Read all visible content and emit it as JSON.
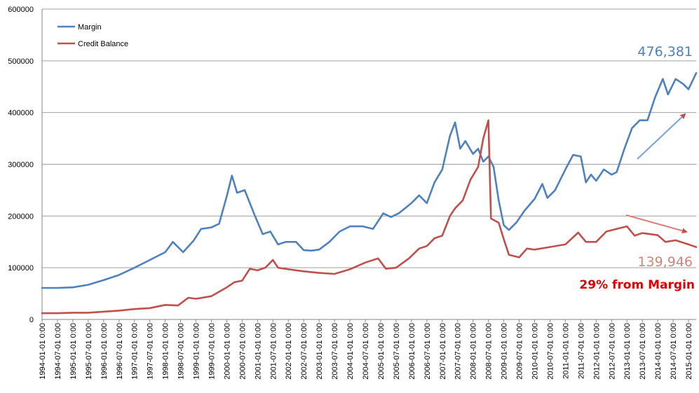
{
  "chart_data": {
    "type": "line",
    "title": "",
    "xlabel": "",
    "ylabel": "",
    "x_start": "1994-01",
    "x_end": "2015-04",
    "ylim": [
      0,
      600000
    ],
    "yticks": [
      0,
      100000,
      200000,
      300000,
      400000,
      500000,
      600000
    ],
    "ytick_labels": [
      "0",
      "100000",
      "200000",
      "300000",
      "400000",
      "500000",
      "600000"
    ],
    "xtick_labels": [
      "1994-01-01 0:00",
      "1994-07-01 0:00",
      "1995-01-01 0:00",
      "1995-07-01 0:00",
      "1996-01-01 0:00",
      "1996-07-01 0:00",
      "1997-01-01 0:00",
      "1997-07-01 0:00",
      "1998-01-01 0:00",
      "1998-07-01 0:00",
      "1999-01-01 0:00",
      "1999-07-01 0:00",
      "2000-01-01 0:00",
      "2000-07-01 0:00",
      "2001-01-01 0:00",
      "2001-07-01 0:00",
      "2002-01-01 0:00",
      "2002-07-01 0:00",
      "2003-01-01 0:00",
      "2003-07-01 0:00",
      "2004-01-01 0:00",
      "2004-07-01 0:00",
      "2005-01-01 0:00",
      "2005-07-01 0:00",
      "2006-01-01 0:00",
      "2006-07-01 0:00",
      "2007-01-01 0:00",
      "2007-07-01 0:00",
      "2008-01-01 0:00",
      "2008-07-01 0:00",
      "2009-01-01 0:00",
      "2009-07-01 0:00",
      "2010-01-01 0:00",
      "2010-07-01 0:00",
      "2011-01-01 0:00",
      "2011-07-01 0:00",
      "2012-01-01 0:00",
      "2012-07-01 0:00",
      "2013-01-01 0:00",
      "2013-07-01 0:00",
      "2014-01-01 0:00",
      "2014-07-01 0:00",
      "2015-01-01 0:00"
    ],
    "grid": "horizontal",
    "legend_position": "top-left",
    "series": [
      {
        "name": "Margin",
        "color": "#4F81BD",
        "points": [
          [
            "1994-01",
            61000
          ],
          [
            "1994-07",
            61000
          ],
          [
            "1995-01",
            62000
          ],
          [
            "1995-07",
            67000
          ],
          [
            "1996-01",
            76000
          ],
          [
            "1996-07",
            86000
          ],
          [
            "1997-01",
            100000
          ],
          [
            "1997-07",
            115000
          ],
          [
            "1998-01",
            130000
          ],
          [
            "1998-04",
            150000
          ],
          [
            "1998-08",
            130000
          ],
          [
            "1998-12",
            152000
          ],
          [
            "1999-03",
            175000
          ],
          [
            "1999-07",
            178000
          ],
          [
            "1999-10",
            185000
          ],
          [
            "2000-01",
            238000
          ],
          [
            "2000-03",
            278000
          ],
          [
            "2000-05",
            245000
          ],
          [
            "2000-08",
            250000
          ],
          [
            "2000-12",
            200000
          ],
          [
            "2001-03",
            165000
          ],
          [
            "2001-06",
            170000
          ],
          [
            "2001-09",
            145000
          ],
          [
            "2001-12",
            150000
          ],
          [
            "2002-04",
            150000
          ],
          [
            "2002-07",
            134000
          ],
          [
            "2002-10",
            133000
          ],
          [
            "2003-01",
            135000
          ],
          [
            "2003-05",
            150000
          ],
          [
            "2003-09",
            170000
          ],
          [
            "2004-01",
            180000
          ],
          [
            "2004-06",
            180000
          ],
          [
            "2004-10",
            175000
          ],
          [
            "2005-02",
            205000
          ],
          [
            "2005-05",
            198000
          ],
          [
            "2005-08",
            205000
          ],
          [
            "2006-01",
            225000
          ],
          [
            "2006-04",
            240000
          ],
          [
            "2006-07",
            225000
          ],
          [
            "2006-10",
            265000
          ],
          [
            "2007-01",
            290000
          ],
          [
            "2007-04",
            355000
          ],
          [
            "2007-06",
            381000
          ],
          [
            "2007-08",
            330000
          ],
          [
            "2007-10",
            345000
          ],
          [
            "2008-01",
            320000
          ],
          [
            "2008-03",
            330000
          ],
          [
            "2008-05",
            305000
          ],
          [
            "2008-07",
            315000
          ],
          [
            "2008-09",
            295000
          ],
          [
            "2008-11",
            230000
          ],
          [
            "2009-01",
            182000
          ],
          [
            "2009-03",
            173000
          ],
          [
            "2009-06",
            188000
          ],
          [
            "2009-09",
            210000
          ],
          [
            "2010-01",
            233000
          ],
          [
            "2010-04",
            262000
          ],
          [
            "2010-06",
            235000
          ],
          [
            "2010-09",
            250000
          ],
          [
            "2011-01",
            290000
          ],
          [
            "2011-04",
            318000
          ],
          [
            "2011-07",
            315000
          ],
          [
            "2011-09",
            265000
          ],
          [
            "2011-11",
            280000
          ],
          [
            "2012-01",
            268000
          ],
          [
            "2012-04",
            290000
          ],
          [
            "2012-07",
            280000
          ],
          [
            "2012-09",
            285000
          ],
          [
            "2012-12",
            330000
          ],
          [
            "2013-03",
            370000
          ],
          [
            "2013-06",
            385000
          ],
          [
            "2013-09",
            385000
          ],
          [
            "2013-12",
            430000
          ],
          [
            "2014-03",
            465000
          ],
          [
            "2014-05",
            435000
          ],
          [
            "2014-08",
            465000
          ],
          [
            "2014-11",
            455000
          ],
          [
            "2015-01",
            445000
          ],
          [
            "2015-04",
            476381
          ]
        ]
      },
      {
        "name": "Credit Balance",
        "color": "#C0504D",
        "points": [
          [
            "1994-01",
            12000
          ],
          [
            "1994-07",
            12000
          ],
          [
            "1995-01",
            13000
          ],
          [
            "1995-07",
            13000
          ],
          [
            "1996-01",
            15000
          ],
          [
            "1996-07",
            17000
          ],
          [
            "1997-01",
            20000
          ],
          [
            "1997-07",
            22000
          ],
          [
            "1998-01",
            28000
          ],
          [
            "1998-06",
            27000
          ],
          [
            "1998-10",
            42000
          ],
          [
            "1999-01",
            40000
          ],
          [
            "1999-07",
            45000
          ],
          [
            "2000-01",
            62000
          ],
          [
            "2000-04",
            72000
          ],
          [
            "2000-07",
            75000
          ],
          [
            "2000-10",
            98000
          ],
          [
            "2001-01",
            95000
          ],
          [
            "2001-04",
            100000
          ],
          [
            "2001-07",
            115000
          ],
          [
            "2001-09",
            100000
          ],
          [
            "2002-01",
            97000
          ],
          [
            "2002-07",
            93000
          ],
          [
            "2003-01",
            90000
          ],
          [
            "2003-07",
            88000
          ],
          [
            "2004-01",
            97000
          ],
          [
            "2004-07",
            110000
          ],
          [
            "2004-12",
            118000
          ],
          [
            "2005-03",
            98000
          ],
          [
            "2005-07",
            100000
          ],
          [
            "2005-12",
            118000
          ],
          [
            "2006-04",
            137000
          ],
          [
            "2006-07",
            142000
          ],
          [
            "2006-10",
            157000
          ],
          [
            "2007-01",
            162000
          ],
          [
            "2007-04",
            200000
          ],
          [
            "2007-06",
            215000
          ],
          [
            "2007-09",
            230000
          ],
          [
            "2007-12",
            270000
          ],
          [
            "2008-03",
            295000
          ],
          [
            "2008-05",
            350000
          ],
          [
            "2008-07",
            385000
          ],
          [
            "2008-08",
            195000
          ],
          [
            "2008-11",
            187000
          ],
          [
            "2009-01",
            155000
          ],
          [
            "2009-03",
            125000
          ],
          [
            "2009-07",
            120000
          ],
          [
            "2009-10",
            137000
          ],
          [
            "2010-01",
            135000
          ],
          [
            "2010-07",
            140000
          ],
          [
            "2011-01",
            145000
          ],
          [
            "2011-06",
            168000
          ],
          [
            "2011-09",
            150000
          ],
          [
            "2012-01",
            150000
          ],
          [
            "2012-05",
            170000
          ],
          [
            "2012-09",
            175000
          ],
          [
            "2013-01",
            180000
          ],
          [
            "2013-04",
            162000
          ],
          [
            "2013-07",
            167000
          ],
          [
            "2014-01",
            163000
          ],
          [
            "2014-04",
            150000
          ],
          [
            "2014-08",
            153000
          ],
          [
            "2015-01",
            145000
          ],
          [
            "2015-04",
            139946
          ]
        ]
      }
    ],
    "annotations": {
      "margin_value": "476,381",
      "credit_value": "139,946",
      "ratio_note": "29% from Margin"
    }
  }
}
